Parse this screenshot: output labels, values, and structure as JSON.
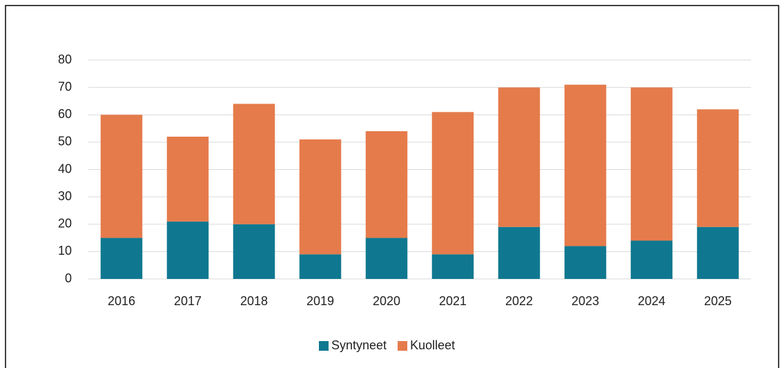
{
  "chart_data": {
    "type": "bar",
    "stacked": true,
    "categories": [
      "2016",
      "2017",
      "2018",
      "2019",
      "2020",
      "2021",
      "2022",
      "2023",
      "2024",
      "2025"
    ],
    "series": [
      {
        "name": "Syntyneet",
        "color": "#0f7890",
        "values": [
          15,
          21,
          20,
          9,
          15,
          9,
          19,
          12,
          14,
          19
        ]
      },
      {
        "name": "Kuolleet",
        "color": "#e57b4b",
        "values": [
          45,
          31,
          44,
          42,
          39,
          52,
          51,
          59,
          56,
          43
        ]
      }
    ],
    "ylim": [
      0,
      80
    ],
    "yticks": [
      0,
      10,
      20,
      30,
      40,
      50,
      60,
      70,
      80
    ],
    "grid": true,
    "legend": "bottom"
  }
}
